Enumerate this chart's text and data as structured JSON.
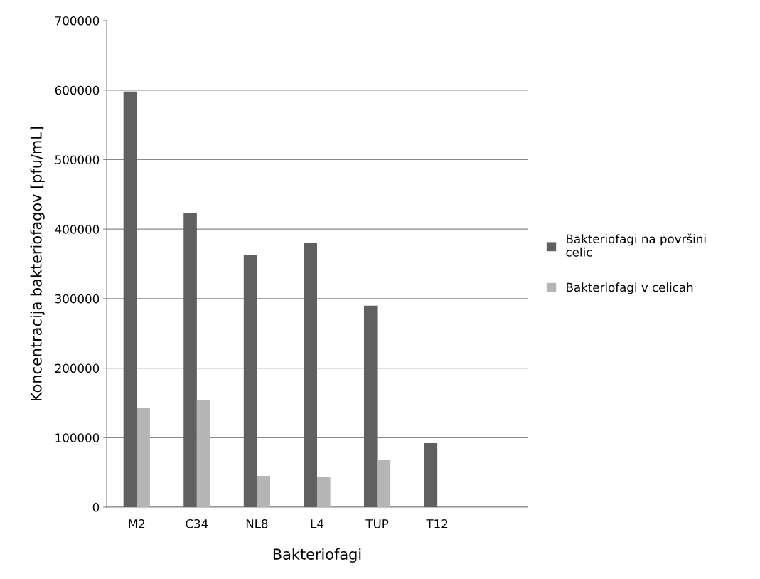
{
  "chart_data": {
    "type": "bar",
    "xlabel": "Bakteriofagi",
    "ylabel": "Koncentracija bakteriofagov [pfu/mL]",
    "categories": [
      "M2",
      "C34",
      "NL8",
      "L4",
      "TUP",
      "T12",
      null
    ],
    "series": [
      {
        "name": "Bakteriofagi na površini celic",
        "color": "#606060",
        "values": [
          598000,
          423000,
          363000,
          380000,
          290000,
          92000,
          null
        ]
      },
      {
        "name": "Bakteriofagi v celicah",
        "color": "#b5b5b5",
        "values": [
          143000,
          154000,
          45000,
          43000,
          68000,
          0,
          null
        ]
      }
    ],
    "ylim": [
      0,
      700000
    ],
    "yticks": [
      0,
      100000,
      200000,
      300000,
      400000,
      500000,
      600000,
      700000
    ],
    "grid": "y",
    "legend": "right"
  }
}
